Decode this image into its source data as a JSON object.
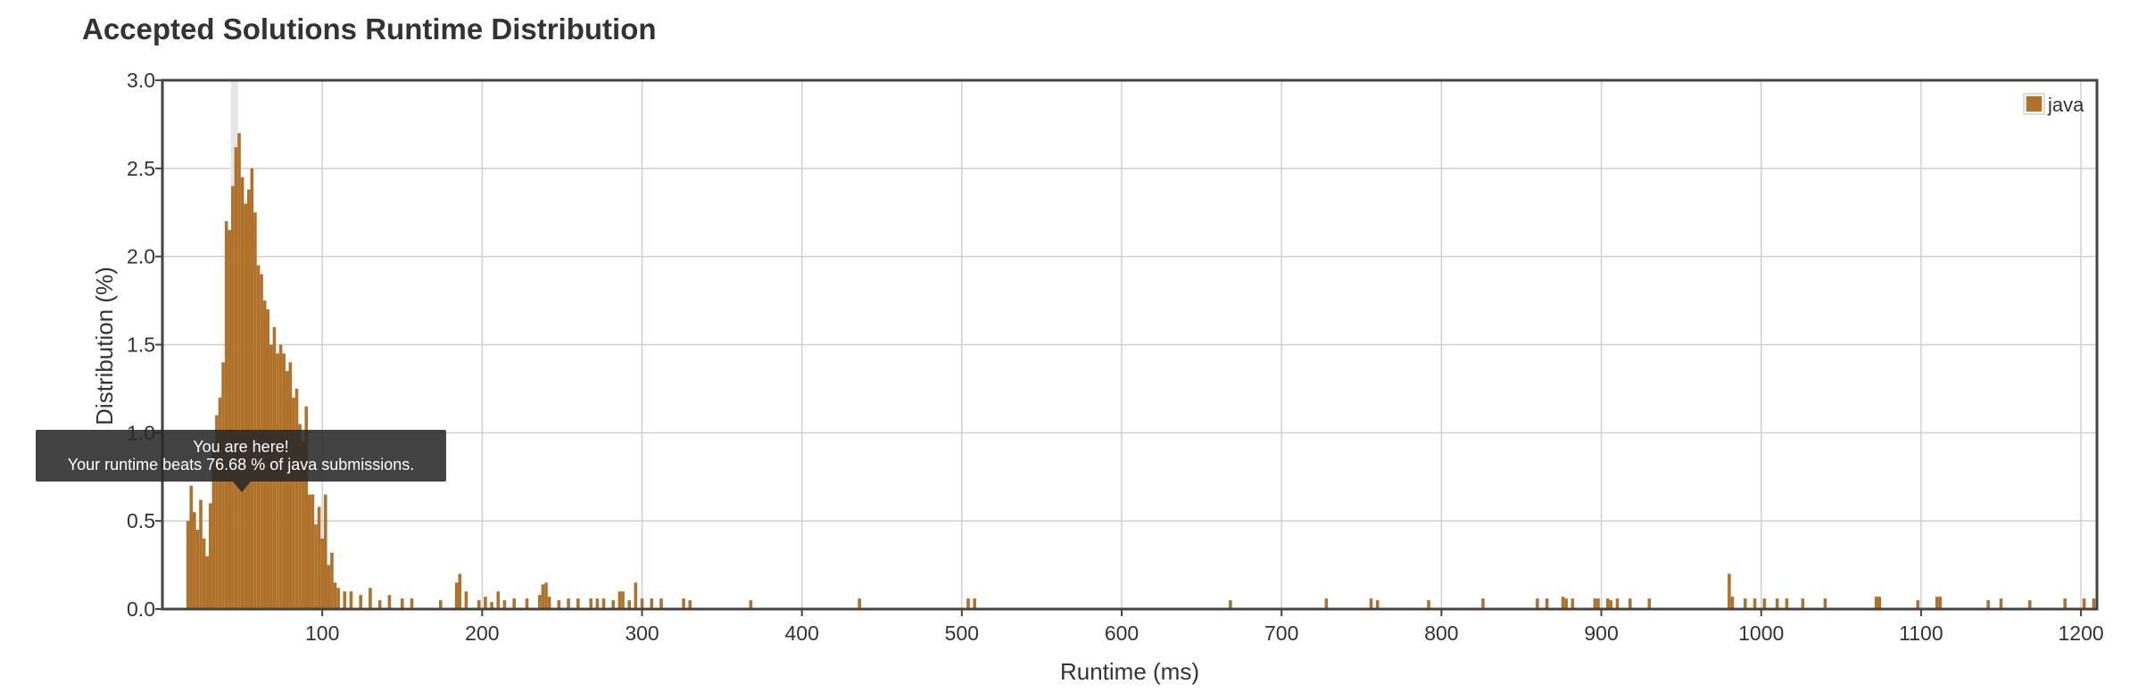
{
  "title": "Accepted Solutions Runtime Distribution",
  "tooltip": {
    "line1": "You are here!",
    "line2": "Your runtime beats 76.68 % of java submissions."
  },
  "chart_data": {
    "type": "bar",
    "xlabel": "Runtime (ms)",
    "ylabel": "Distribution (%)",
    "xlim": [
      0,
      1210
    ],
    "ylim": [
      0,
      3.0
    ],
    "x_ticks": [
      100,
      200,
      300,
      400,
      500,
      600,
      700,
      800,
      900,
      1000,
      1100,
      1200
    ],
    "y_ticks": [
      0.0,
      0.5,
      1.0,
      1.5,
      2.0,
      2.5,
      3.0
    ],
    "grid": true,
    "legend_position": "top-right",
    "bar_color": "#b0712a",
    "highlight_x": 45,
    "highlight_color": "#e6e6e6",
    "series": [
      {
        "name": "java",
        "x": [
          16,
          18,
          20,
          22,
          24,
          26,
          28,
          30,
          32,
          34,
          36,
          38,
          40,
          42,
          44,
          46,
          48,
          50,
          52,
          54,
          56,
          58,
          60,
          62,
          64,
          66,
          68,
          70,
          72,
          74,
          76,
          78,
          80,
          82,
          84,
          86,
          88,
          90,
          92,
          94,
          96,
          98,
          100,
          102,
          104,
          106,
          108,
          110,
          114,
          118,
          124,
          130,
          136,
          142,
          150,
          156,
          174,
          184,
          186,
          190,
          198,
          202,
          206,
          210,
          214,
          220,
          228,
          236,
          238,
          240,
          242,
          248,
          254,
          260,
          268,
          272,
          276,
          282,
          286,
          288,
          292,
          296,
          300,
          306,
          312,
          326,
          330,
          368,
          436,
          504,
          508,
          668,
          728,
          756,
          760,
          792,
          826,
          860,
          866,
          876,
          878,
          882,
          896,
          898,
          904,
          906,
          910,
          918,
          930,
          980,
          982,
          990,
          996,
          1002,
          1010,
          1016,
          1026,
          1040,
          1072,
          1074,
          1098,
          1110,
          1112,
          1142,
          1150,
          1168,
          1190,
          1202,
          1208
        ],
        "values": [
          0.5,
          0.7,
          0.55,
          0.45,
          0.62,
          0.4,
          0.3,
          0.6,
          0.9,
          1.1,
          1.2,
          1.4,
          2.2,
          2.15,
          2.4,
          2.62,
          2.7,
          2.45,
          2.3,
          2.38,
          2.5,
          2.25,
          1.95,
          1.9,
          1.75,
          1.7,
          1.5,
          1.6,
          1.45,
          1.5,
          1.45,
          1.35,
          1.4,
          1.2,
          1.25,
          1.05,
          0.95,
          1.15,
          0.65,
          0.65,
          0.48,
          0.58,
          0.4,
          0.65,
          0.25,
          0.32,
          0.15,
          0.12,
          0.1,
          0.1,
          0.08,
          0.12,
          0.05,
          0.08,
          0.06,
          0.06,
          0.05,
          0.15,
          0.2,
          0.1,
          0.05,
          0.07,
          0.04,
          0.1,
          0.05,
          0.06,
          0.06,
          0.08,
          0.14,
          0.15,
          0.07,
          0.05,
          0.06,
          0.06,
          0.06,
          0.06,
          0.06,
          0.05,
          0.1,
          0.1,
          0.05,
          0.15,
          0.06,
          0.06,
          0.06,
          0.06,
          0.05,
          0.05,
          0.06,
          0.06,
          0.06,
          0.05,
          0.06,
          0.06,
          0.05,
          0.05,
          0.06,
          0.06,
          0.06,
          0.07,
          0.06,
          0.06,
          0.06,
          0.06,
          0.06,
          0.05,
          0.06,
          0.06,
          0.06,
          0.2,
          0.07,
          0.06,
          0.06,
          0.06,
          0.06,
          0.06,
          0.06,
          0.06,
          0.07,
          0.07,
          0.05,
          0.07,
          0.07,
          0.05,
          0.06,
          0.05,
          0.06,
          0.06,
          0.06
        ]
      }
    ]
  }
}
